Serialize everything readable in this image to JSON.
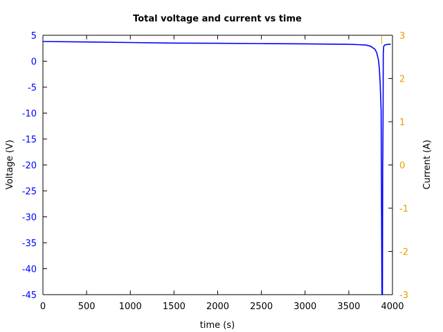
{
  "chart_data": {
    "type": "line",
    "title": "Total voltage and current vs time",
    "xlabel": "time (s)",
    "ylabel": "Voltage (V)",
    "y2label": "Current (A)",
    "xlim": [
      0,
      4000
    ],
    "ylim": [
      -45,
      5
    ],
    "y2lim": [
      -3,
      3
    ],
    "x_ticks": [
      "0",
      "500",
      "1000",
      "1500",
      "2000",
      "2500",
      "3000",
      "3500",
      "4000"
    ],
    "y_ticks": [
      "5",
      "0",
      "-5",
      "-10",
      "-15",
      "-20",
      "-25",
      "-30",
      "-35",
      "-40",
      "-45"
    ],
    "y2_ticks": [
      "3",
      "2",
      "1",
      "0",
      "-1",
      "-2",
      "-3"
    ],
    "grid": false,
    "series": [
      {
        "axis": "y",
        "color": "#0000ff",
        "x": [
          0,
          500,
          1000,
          1500,
          2000,
          2500,
          3000,
          3500,
          3600,
          3700,
          3750,
          3800,
          3820,
          3840,
          3850,
          3860,
          3870,
          3880,
          3885,
          3888,
          3890,
          3893,
          3895,
          3900,
          3910,
          3930,
          3950,
          3980
        ],
        "y": [
          3.8,
          3.7,
          3.6,
          3.5,
          3.45,
          3.4,
          3.35,
          3.25,
          3.2,
          3.1,
          2.9,
          2.3,
          1.6,
          0.2,
          -1.5,
          -4.5,
          -9.5,
          -45,
          -45,
          -19.5,
          -18.7,
          -8,
          1.5,
          2.9,
          3.1,
          3.2,
          3.25,
          3.25
        ]
      },
      {
        "axis": "y2",
        "color": "#e69f00",
        "x": [
          3877,
          3877
        ],
        "y": [
          3,
          2.8
        ]
      }
    ]
  },
  "colors": {
    "voltage": "#0000ff",
    "current": "#e69f00",
    "axis": "#000000"
  }
}
